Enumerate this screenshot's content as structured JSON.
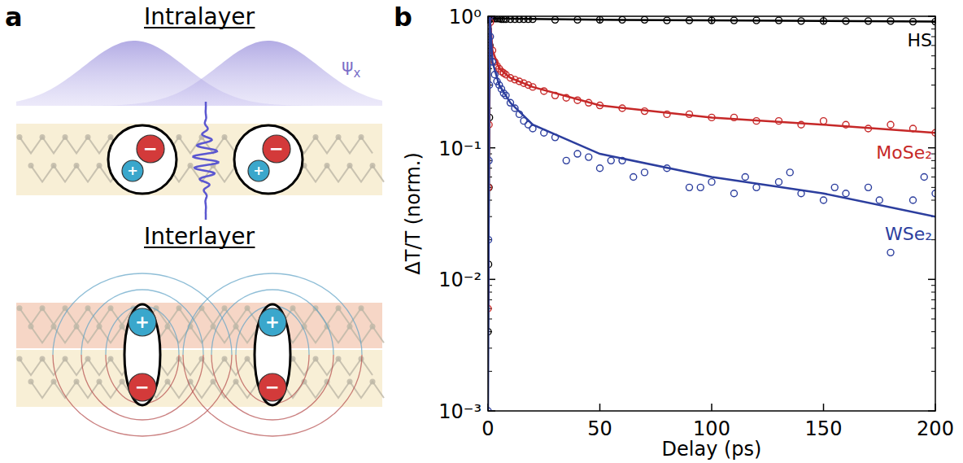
{
  "panel_labels": [
    "a",
    "b"
  ],
  "diagram": {
    "intralayer": {
      "title": "Intralayer",
      "wavefunction": "ψ",
      "wavefunction_subscript": "x"
    },
    "interlayer": {
      "title": "Interlayer"
    },
    "charges": {
      "electron": "−",
      "hole": "+"
    }
  },
  "chart_data": {
    "type": "scatter",
    "x_label": "Delay (ps)",
    "y_label": "ΔT/T (norm.)",
    "xlim": [
      0,
      200
    ],
    "ylim": [
      0.001,
      1
    ],
    "xticks": [
      0,
      50,
      100,
      150,
      200
    ],
    "yticks": [
      {
        "value": 0.001,
        "label": "10⁻³"
      },
      {
        "value": 0.01,
        "label": "10⁻²"
      },
      {
        "value": 0.1,
        "label": "10⁻¹"
      },
      {
        "value": 1,
        "label": "10⁰"
      }
    ],
    "log": "y",
    "grid": false,
    "series": [
      {
        "name": "HS",
        "color": "#000000",
        "marker": "circle",
        "x": [
          0,
          0.2,
          0.4,
          0.6,
          0.8,
          1,
          1.5,
          2,
          3,
          4,
          5,
          6,
          7,
          8,
          10,
          12,
          14,
          16,
          18,
          20,
          30,
          40,
          50,
          60,
          70,
          80,
          90,
          100,
          110,
          120,
          130,
          140,
          150,
          160,
          170,
          180,
          190,
          200
        ],
        "values": [
          0.004,
          0.013,
          0.05,
          0.17,
          0.6,
          0.98,
          0.97,
          0.96,
          0.96,
          0.96,
          0.96,
          0.95,
          0.95,
          0.95,
          0.95,
          0.95,
          0.95,
          0.95,
          0.95,
          0.95,
          0.94,
          0.94,
          0.94,
          0.94,
          0.94,
          0.93,
          0.93,
          0.93,
          0.93,
          0.93,
          0.93,
          0.92,
          0.92,
          0.92,
          0.92,
          0.92,
          0.91,
          0.91
        ]
      },
      {
        "type": "line",
        "color": "#000000",
        "line_style": "solid",
        "x": [
          0,
          0.5,
          1,
          2,
          50,
          100,
          150,
          200
        ],
        "values": [
          0.004,
          0.12,
          0.97,
          0.96,
          0.94,
          0.93,
          0.92,
          0.91
        ]
      },
      {
        "name": "MoSe₂",
        "color": "#c62828",
        "marker": "circle",
        "x": [
          0,
          0.2,
          0.4,
          0.6,
          0.8,
          1,
          2,
          3,
          4,
          5,
          6,
          7,
          8,
          10,
          12,
          14,
          16,
          18,
          20,
          25,
          30,
          35,
          40,
          45,
          50,
          60,
          70,
          80,
          90,
          100,
          110,
          120,
          130,
          140,
          150,
          160,
          170,
          180,
          190,
          200
        ],
        "values": [
          0.006,
          0.05,
          0.15,
          0.5,
          1.0,
          0.9,
          0.55,
          0.45,
          0.42,
          0.4,
          0.38,
          0.37,
          0.36,
          0.34,
          0.33,
          0.32,
          0.31,
          0.3,
          0.29,
          0.27,
          0.25,
          0.24,
          0.23,
          0.22,
          0.21,
          0.2,
          0.19,
          0.18,
          0.18,
          0.17,
          0.17,
          0.16,
          0.16,
          0.15,
          0.16,
          0.15,
          0.14,
          0.15,
          0.14,
          0.13
        ]
      },
      {
        "type": "line",
        "color": "#c62828",
        "line_style": "solid",
        "x": [
          0,
          0.5,
          0.8,
          2,
          5,
          10,
          20,
          50,
          100,
          150,
          200
        ],
        "values": [
          0.006,
          0.2,
          1,
          0.55,
          0.4,
          0.34,
          0.29,
          0.21,
          0.17,
          0.15,
          0.13
        ]
      },
      {
        "name": "WSe₂",
        "color": "#2c3e9e",
        "marker": "circle",
        "x": [
          0,
          0.2,
          0.4,
          0.6,
          0.8,
          1,
          2,
          3,
          4,
          5,
          6,
          7,
          8,
          10,
          12,
          14,
          16,
          18,
          20,
          25,
          30,
          35,
          40,
          45,
          50,
          55,
          60,
          65,
          70,
          80,
          90,
          95,
          100,
          110,
          115,
          120,
          130,
          135,
          140,
          150,
          155,
          160,
          170,
          175,
          180,
          190,
          195,
          200
        ],
        "values": [
          0.001,
          0.02,
          0.08,
          0.3,
          1.0,
          0.7,
          0.45,
          0.36,
          0.32,
          0.3,
          0.28,
          0.26,
          0.25,
          0.22,
          0.2,
          0.18,
          0.16,
          0.15,
          0.14,
          0.13,
          0.12,
          0.08,
          0.09,
          0.085,
          0.07,
          0.08,
          0.08,
          0.06,
          0.065,
          0.07,
          0.05,
          0.05,
          0.055,
          0.045,
          0.06,
          0.05,
          0.055,
          0.065,
          0.045,
          0.04,
          0.05,
          0.045,
          0.05,
          0.04,
          0.016,
          0.04,
          0.06,
          0.045
        ]
      },
      {
        "type": "line",
        "color": "#2c3e9e",
        "line_style": "solid",
        "x": [
          0,
          0.5,
          0.8,
          2,
          5,
          10,
          20,
          50,
          100,
          150,
          200
        ],
        "values": [
          0.001,
          0.2,
          1,
          0.45,
          0.3,
          0.22,
          0.15,
          0.09,
          0.06,
          0.045,
          0.03
        ]
      }
    ]
  }
}
